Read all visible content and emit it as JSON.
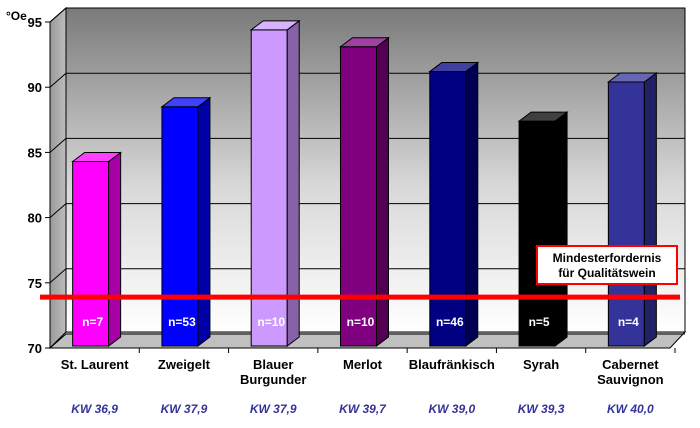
{
  "chart_data": {
    "type": "bar",
    "unit_label": "°Oe",
    "categories": [
      {
        "label": [
          "St. Laurent"
        ],
        "n_label": "n=7",
        "kw": "KW 36,9",
        "color": "#ff00ff"
      },
      {
        "label": [
          "Zweigelt"
        ],
        "n_label": "n=53",
        "kw": "KW 37,9",
        "color": "#0000ff"
      },
      {
        "label": [
          "Blauer",
          "Burgunder"
        ],
        "n_label": "n=10",
        "kw": "KW 37,9",
        "color": "#cc99ff"
      },
      {
        "label": [
          "Merlot"
        ],
        "n_label": "n=10",
        "kw": "KW 39,7",
        "color": "#800080"
      },
      {
        "label": [
          "Blaufränkisch"
        ],
        "n_label": "n=46",
        "kw": "KW 39,0",
        "color": "#000080"
      },
      {
        "label": [
          "Syrah"
        ],
        "n_label": "n=5",
        "kw": "KW 39,3",
        "color": "#000000"
      },
      {
        "label": [
          "Cabernet",
          "Sauvignon"
        ],
        "n_label": "n=4",
        "kw": "KW 40,0",
        "color": "#333399"
      }
    ],
    "values": [
      84.3,
      88.5,
      94.4,
      93.1,
      91.2,
      87.4,
      90.4
    ],
    "ylim": [
      70,
      95
    ],
    "yticks": [
      70,
      75,
      80,
      85,
      90,
      95
    ],
    "ytick_labels": [
      "70",
      "75",
      "80",
      "85",
      "90",
      "95"
    ],
    "grid": true,
    "reference_line": {
      "value": 73.9,
      "label": [
        "Mindesterfordernis",
        "für Qualitätswein"
      ],
      "color": "#ff0000"
    }
  }
}
